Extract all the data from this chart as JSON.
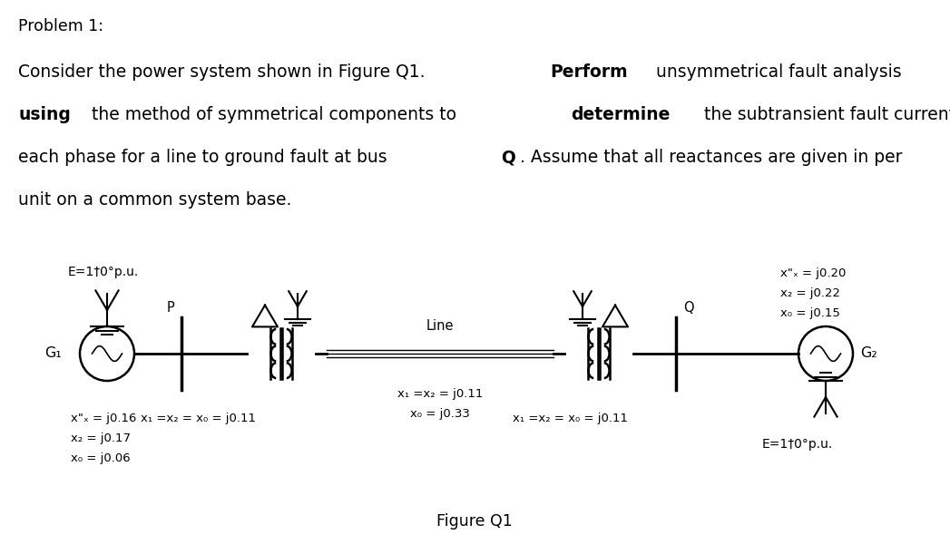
{
  "title": "Problem 1:",
  "bg_color": "#ffffff",
  "text_color": "#000000",
  "diagram": {
    "E_left": "E=1†0°p.u.",
    "E_right": "E=1†0°p.u.",
    "G1_label": "G₁",
    "G2_label": "G₂",
    "bus_P": "P",
    "bus_Q": "Q",
    "line_label": "Line",
    "G1_params": [
      "x\"ₓ = j0.16",
      "x₂ = j0.17",
      "x₀ = j0.06"
    ],
    "T1_params": "x₁ =x₂ = x₀ = j0.11",
    "line_params": [
      "x₁ =x₂ = j0.11",
      "x₀ = j0.33"
    ],
    "T2_params": "x₁ =x₂ = x₀ = j0.11",
    "G2_params": [
      "x\"ₓ = j0.20",
      "x₂ = j0.22",
      "x₀ = j0.15"
    ]
  },
  "para_lines": [
    [
      {
        "text": "Consider the power system shown in Figure Q1. ",
        "bold": false
      },
      {
        "text": "Perform",
        "bold": true
      },
      {
        "text": " unsymmetrical fault analysis",
        "bold": false
      }
    ],
    [
      {
        "text": "using",
        "bold": true
      },
      {
        "text": " the method of symmetrical components to ",
        "bold": false
      },
      {
        "text": "determine",
        "bold": true
      },
      {
        "text": " the subtransient fault current in",
        "bold": false
      }
    ],
    [
      {
        "text": "each phase for a line to ground fault at bus ",
        "bold": false
      },
      {
        "text": "Q",
        "bold": true
      },
      {
        "text": ". Assume that all reactances are given in per",
        "bold": false
      }
    ],
    [
      {
        "text": "unit on a common system base.",
        "bold": false
      }
    ]
  ],
  "figure_label": "Figure Q1",
  "para_fs": 13.5,
  "title_fs": 12.5,
  "diag_fs": 10.5,
  "diag_fs_small": 9.5
}
